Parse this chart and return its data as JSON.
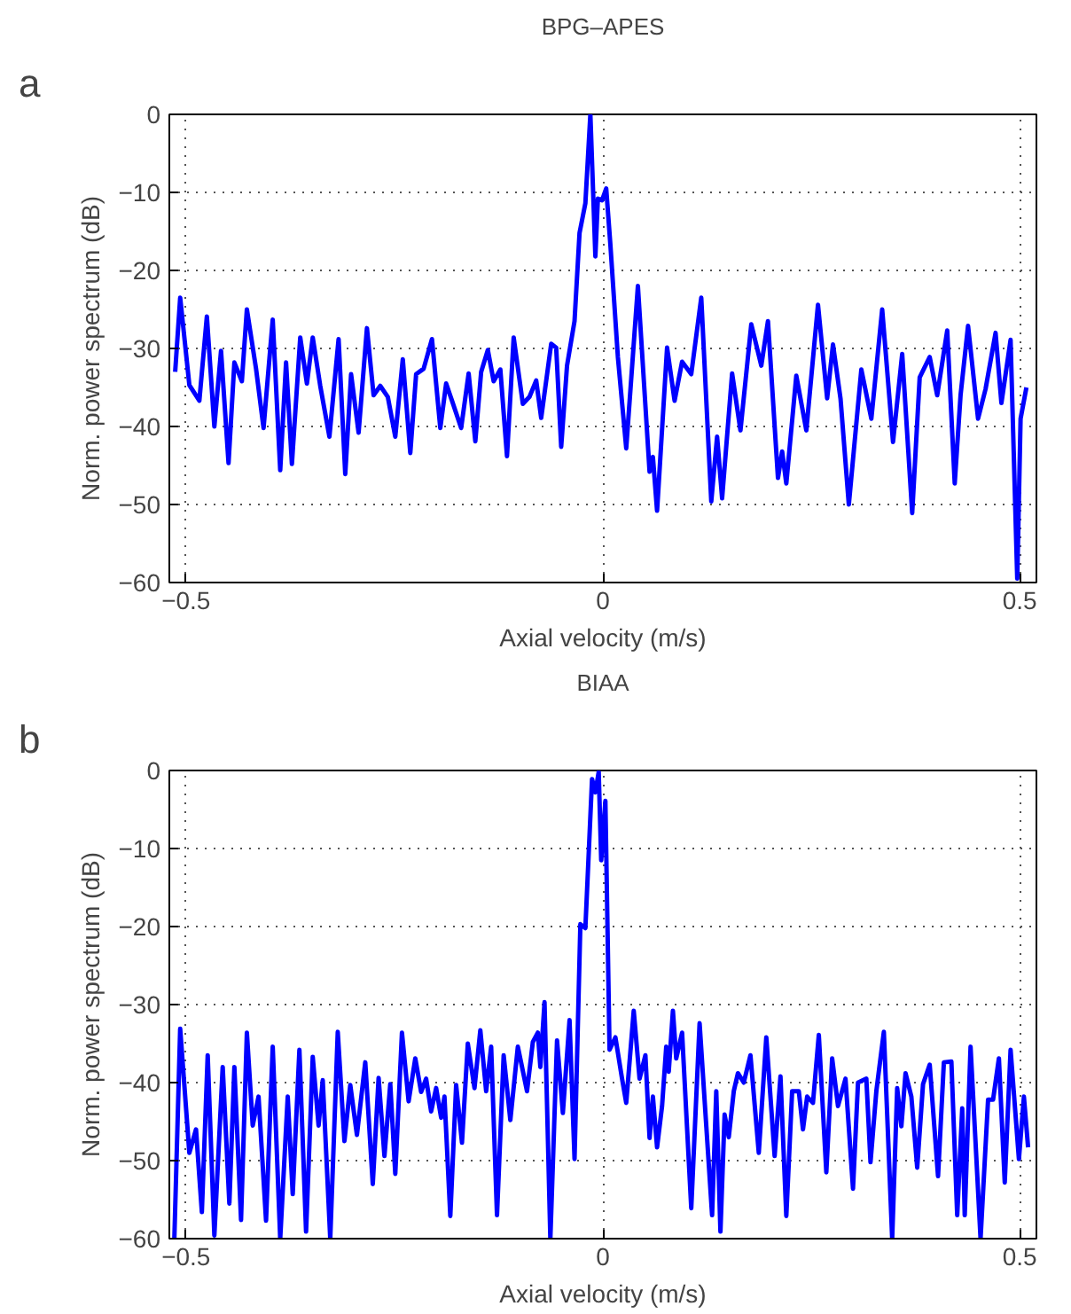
{
  "chart_data": [
    {
      "type": "line",
      "title": "BPG–APES",
      "xlabel": "Axial velocity (m/s)",
      "ylabel": "Norm. power spectrum (dB)",
      "annotations": [
        "a"
      ],
      "xlim": [
        -0.52,
        0.52
      ],
      "ylim": [
        -60,
        0
      ],
      "xticks": [
        -0.5,
        0,
        0.5
      ],
      "yticks": [
        -60,
        -50,
        -40,
        -30,
        -20,
        -10,
        0
      ],
      "grid": true,
      "line_style": "solid",
      "marker": "none",
      "series": [
        {
          "color": "#0000ff",
          "x": [
            -0.513,
            -0.507,
            -0.496,
            -0.484,
            -0.475,
            -0.466,
            -0.458,
            -0.449,
            -0.442,
            -0.433,
            -0.427,
            -0.416,
            -0.407,
            -0.396,
            -0.387,
            -0.38,
            -0.373,
            -0.363,
            -0.355,
            -0.348,
            -0.339,
            -0.328,
            -0.317,
            -0.309,
            -0.302,
            -0.293,
            -0.283,
            -0.275,
            -0.267,
            -0.258,
            -0.249,
            -0.24,
            -0.231,
            -0.224,
            -0.215,
            -0.205,
            -0.195,
            -0.188,
            -0.18,
            -0.17,
            -0.161,
            -0.153,
            -0.146,
            -0.138,
            -0.131,
            -0.123,
            -0.115,
            -0.107,
            -0.096,
            -0.088,
            -0.08,
            -0.074,
            -0.062,
            -0.056,
            -0.05,
            -0.043,
            -0.034,
            -0.028,
            -0.021,
            -0.015,
            -0.009,
            -0.006,
            -0.001,
            0.004,
            0.009,
            0.018,
            0.028,
            0.042,
            0.056,
            0.06,
            0.065,
            0.077,
            0.086,
            0.095,
            0.106,
            0.118,
            0.13,
            0.137,
            0.143,
            0.155,
            0.165,
            0.178,
            0.19,
            0.198,
            0.21,
            0.215,
            0.22,
            0.232,
            0.244,
            0.258,
            0.269,
            0.276,
            0.285,
            0.295,
            0.31,
            0.322,
            0.335,
            0.348,
            0.359,
            0.371,
            0.38,
            0.392,
            0.401,
            0.413,
            0.422,
            0.429,
            0.438,
            0.45,
            0.459,
            0.471,
            0.478,
            0.489,
            0.497,
            0.501,
            0.508
          ],
          "values": [
            -33,
            -23.5,
            -34.7,
            -36.7,
            -25.9,
            -40,
            -30.3,
            -44.7,
            -31.8,
            -34.2,
            -25,
            -32.6,
            -40.2,
            -26.3,
            -45.6,
            -31.8,
            -44.8,
            -28.6,
            -34.5,
            -28.6,
            -34.8,
            -41.3,
            -28.8,
            -46.1,
            -33.3,
            -40.8,
            -27.4,
            -36,
            -34.8,
            -36.2,
            -41.3,
            -31.4,
            -43.4,
            -33.3,
            -32.6,
            -28.8,
            -40.2,
            -34.5,
            -37,
            -40.2,
            -33.2,
            -41.9,
            -33,
            -30.2,
            -34.2,
            -32.7,
            -43.8,
            -28.6,
            -37.1,
            -36.2,
            -34.1,
            -38.9,
            -29.4,
            -29.9,
            -42.6,
            -32.2,
            -26.5,
            -15.2,
            -11.4,
            0,
            -18.2,
            -10.8,
            -11,
            -9.5,
            -16.7,
            -31.1,
            -42.8,
            -22,
            -45.8,
            -43.9,
            -50.8,
            -29.9,
            -36.7,
            -31.7,
            -33.3,
            -23.5,
            -49.6,
            -41.3,
            -49.2,
            -33.2,
            -40.5,
            -26.9,
            -32.2,
            -26.5,
            -46.6,
            -43.2,
            -47.3,
            -33.5,
            -40.5,
            -24.4,
            -36.4,
            -29.5,
            -36.4,
            -50,
            -32.7,
            -39,
            -25,
            -42,
            -30.7,
            -51.1,
            -33.7,
            -31.1,
            -36,
            -27.7,
            -47.3,
            -36,
            -27.1,
            -39,
            -35.2,
            -28,
            -37,
            -28.9,
            -59.5,
            -39,
            -35
          ]
        }
      ]
    },
    {
      "type": "line",
      "title": "BIAA",
      "xlabel": "Axial velocity (m/s)",
      "ylabel": "Norm. power spectrum (dB)",
      "annotations": [
        "b"
      ],
      "xlim": [
        -0.52,
        0.52
      ],
      "ylim": [
        -60,
        0
      ],
      "xticks": [
        -0.5,
        0,
        0.5
      ],
      "yticks": [
        -60,
        -50,
        -40,
        -30,
        -20,
        -10,
        0
      ],
      "grid": true,
      "line_style": "solid",
      "marker": "none",
      "series": [
        {
          "color": "#0000ff",
          "x": [
            -0.514,
            -0.507,
            -0.496,
            -0.488,
            -0.481,
            -0.474,
            -0.466,
            -0.456,
            -0.448,
            -0.442,
            -0.434,
            -0.427,
            -0.42,
            -0.413,
            -0.404,
            -0.396,
            -0.387,
            -0.378,
            -0.372,
            -0.364,
            -0.356,
            -0.348,
            -0.341,
            -0.336,
            -0.327,
            -0.318,
            -0.31,
            -0.303,
            -0.295,
            -0.285,
            -0.276,
            -0.269,
            -0.262,
            -0.255,
            -0.249,
            -0.241,
            -0.233,
            -0.225,
            -0.218,
            -0.212,
            -0.206,
            -0.2,
            -0.194,
            -0.19,
            -0.183,
            -0.176,
            -0.169,
            -0.162,
            -0.154,
            -0.147,
            -0.14,
            -0.134,
            -0.127,
            -0.119,
            -0.111,
            -0.102,
            -0.091,
            -0.084,
            -0.078,
            -0.075,
            -0.07,
            -0.063,
            -0.055,
            -0.048,
            -0.04,
            -0.034,
            -0.027,
            -0.021,
            -0.013,
            -0.009,
            -0.005,
            -0.002,
            0.003,
            0.008,
            0.015,
            0.023,
            0.028,
            0.037,
            0.044,
            0.051,
            0.056,
            0.06,
            0.065,
            0.071,
            0.076,
            0.079,
            0.084,
            0.088,
            0.095,
            0.106,
            0.116,
            0.131,
            0.136,
            0.141,
            0.146,
            0.151,
            0.157,
            0.162,
            0.169,
            0.177,
            0.187,
            0.196,
            0.206,
            0.213,
            0.22,
            0.227,
            0.235,
            0.24,
            0.245,
            0.252,
            0.259,
            0.268,
            0.275,
            0.282,
            0.291,
            0.3,
            0.306,
            0.316,
            0.321,
            0.328,
            0.337,
            0.347,
            0.353,
            0.358,
            0.363,
            0.37,
            0.377,
            0.384,
            0.392,
            0.402,
            0.409,
            0.418,
            0.425,
            0.431,
            0.434,
            0.441,
            0.453,
            0.462,
            0.468,
            0.475,
            0.482,
            0.489,
            0.499,
            0.505,
            0.51
          ],
          "values": [
            -60,
            -33.1,
            -49,
            -46,
            -56.6,
            -36.5,
            -59.6,
            -38,
            -55.5,
            -38,
            -57.6,
            -33.6,
            -45.5,
            -41.8,
            -57.7,
            -35.4,
            -60,
            -41.8,
            -54.3,
            -35.8,
            -59.1,
            -36.7,
            -45.5,
            -39.7,
            -60,
            -33.5,
            -47.5,
            -40.3,
            -46.7,
            -37.4,
            -53,
            -39.4,
            -49.4,
            -40.2,
            -51.7,
            -33.6,
            -42.4,
            -36.9,
            -41.2,
            -39.5,
            -43.7,
            -40.7,
            -44.5,
            -41.8,
            -57.1,
            -40.3,
            -47.7,
            -35,
            -40.7,
            -33.3,
            -41.1,
            -35.4,
            -57,
            -36.5,
            -44.8,
            -35.4,
            -41.1,
            -34.8,
            -33.6,
            -38,
            -29.7,
            -60,
            -34.6,
            -43.9,
            -32,
            -49.8,
            -19.7,
            -20.2,
            -1.1,
            -2.8,
            -0.2,
            -11.5,
            -3.9,
            -35.8,
            -34.2,
            -39.5,
            -42.6,
            -30.8,
            -39.5,
            -36.5,
            -47.1,
            -41.8,
            -48.3,
            -43,
            -35.4,
            -38.6,
            -30.8,
            -36.9,
            -33.6,
            -56.1,
            -32.4,
            -57,
            -41.1,
            -59.1,
            -44.1,
            -47,
            -41.1,
            -38.8,
            -40,
            -36.5,
            -49,
            -34.2,
            -49.4,
            -39.2,
            -57.1,
            -41.1,
            -41.1,
            -46,
            -41.8,
            -42.6,
            -33.9,
            -51.5,
            -36.9,
            -43,
            -39.5,
            -53.6,
            -40,
            -39.5,
            -50.2,
            -41.1,
            -33.5,
            -60,
            -40.7,
            -45.6,
            -38.8,
            -41.8,
            -50.9,
            -40.2,
            -37.7,
            -52,
            -37.4,
            -37.3,
            -57,
            -43.3,
            -57,
            -35.4,
            -60,
            -42.2,
            -42.2,
            -36.9,
            -52.8,
            -35.8,
            -49.8,
            -41.8,
            -48.3
          ]
        }
      ]
    }
  ]
}
